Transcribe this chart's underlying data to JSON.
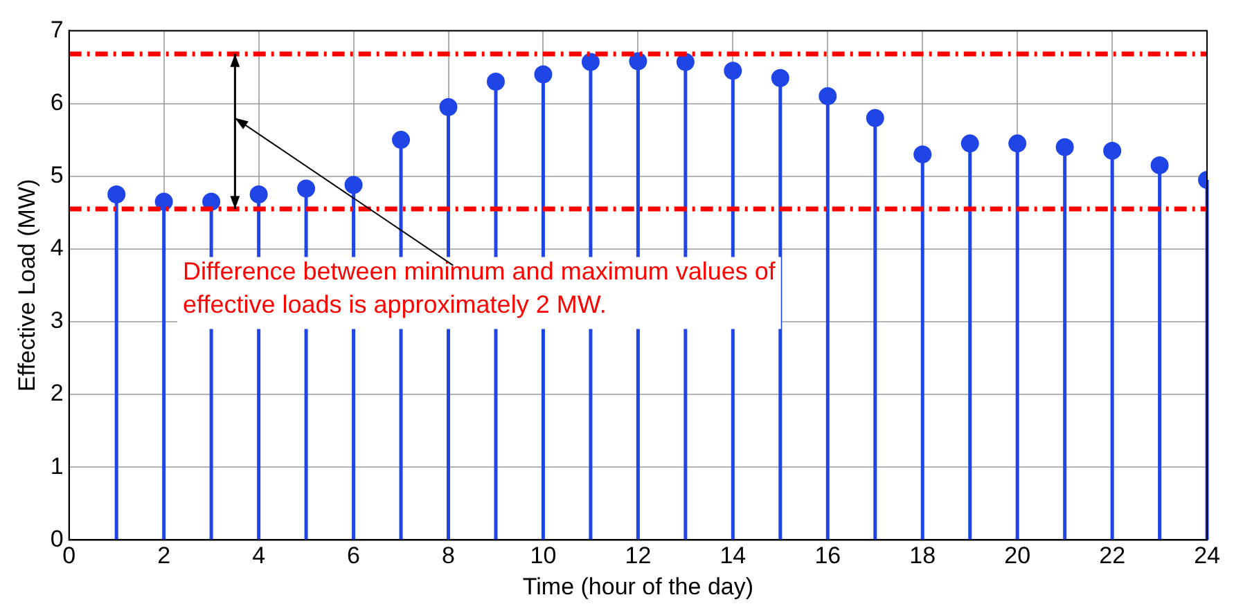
{
  "chart_data": {
    "type": "lollipop",
    "xlabel": "Time (hour of the day)",
    "ylabel": "Effective Load (MW)",
    "x": [
      1,
      2,
      3,
      4,
      5,
      6,
      7,
      8,
      9,
      10,
      11,
      12,
      13,
      14,
      15,
      16,
      17,
      18,
      19,
      20,
      21,
      22,
      23,
      24
    ],
    "series": [
      {
        "color": "#1f45e6",
        "values": [
          4.75,
          4.65,
          4.65,
          4.75,
          4.83,
          4.88,
          5.5,
          5.95,
          6.3,
          6.4,
          6.57,
          6.58,
          6.57,
          6.45,
          6.35,
          6.1,
          5.8,
          5.3,
          5.45,
          5.45,
          5.4,
          5.35,
          5.15,
          4.95
        ]
      }
    ],
    "xlim": [
      0,
      24
    ],
    "xticks": [
      0,
      2,
      4,
      6,
      8,
      10,
      12,
      14,
      16,
      18,
      20,
      22,
      24
    ],
    "ylim": [
      0,
      7
    ],
    "yticks": [
      0,
      1,
      2,
      3,
      4,
      5,
      6,
      7
    ],
    "ref_lines": [
      {
        "axis": "y",
        "value": 6.68,
        "color": "#ff0000",
        "line_style": "dashed"
      },
      {
        "axis": "y",
        "value": 4.55,
        "color": "#ff0000",
        "line_style": "dashed"
      }
    ],
    "annotations": [
      "Difference between minimum and maximum values of\neffective loads is approximately 2 MW."
    ],
    "grid": true,
    "marker": "circle",
    "legend": false
  }
}
